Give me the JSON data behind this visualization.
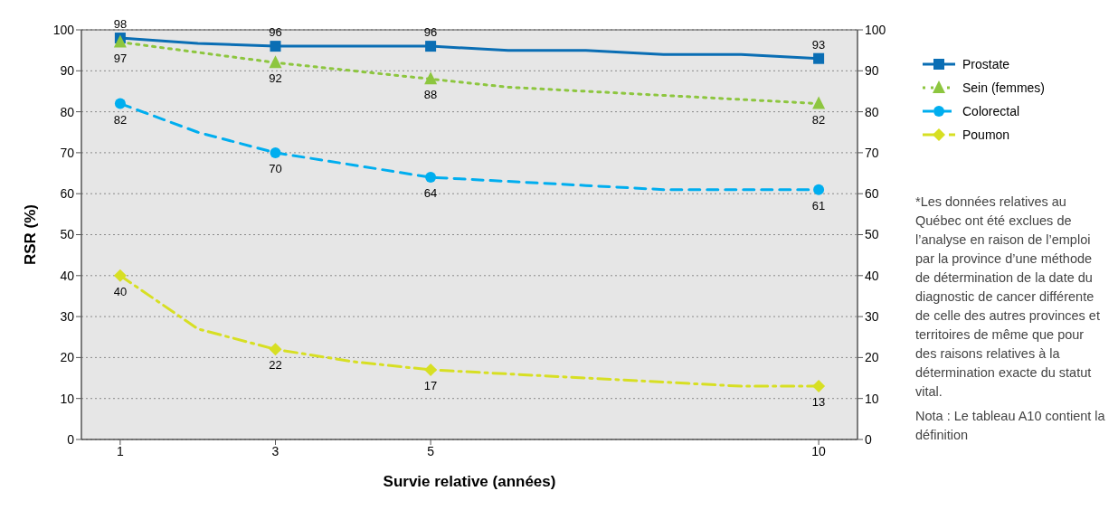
{
  "chart_data": {
    "type": "line",
    "xlabel": "Survie relative (années)",
    "ylabel": "RSR (%)",
    "x": [
      1,
      2,
      3,
      4,
      5,
      6,
      7,
      8,
      9,
      10
    ],
    "xlim": [
      0.5,
      10.5
    ],
    "xticks": [
      1,
      3,
      5,
      10
    ],
    "ylim": [
      0,
      100
    ],
    "yticks": [
      0,
      10,
      20,
      30,
      40,
      50,
      60,
      70,
      80,
      90,
      100
    ],
    "y2lim": [
      0,
      100
    ],
    "y2ticks": [
      0,
      10,
      20,
      30,
      40,
      50,
      60,
      70,
      80,
      90,
      100
    ],
    "grid": "y",
    "legend": "top right",
    "series": [
      {
        "name": "Prostate",
        "color": "#0a6eb4",
        "marker": "none",
        "line_style": "solid",
        "values": [
          98,
          96.7,
          96,
          96,
          96,
          95,
          95,
          94,
          94,
          93
        ]
      },
      {
        "name": "Sein (femmes)",
        "color": "#8dc63f",
        "marker": "none",
        "line_style": "dotted",
        "values": [
          97,
          94.5,
          92,
          90,
          88,
          86,
          85,
          84,
          83,
          82
        ]
      },
      {
        "name": "Colorectal",
        "color": "#00aeef",
        "marker": "none",
        "line_style": "dashed",
        "values": [
          82,
          75,
          70,
          67,
          64,
          63,
          62,
          61,
          61,
          61
        ]
      },
      {
        "name": "Poumon",
        "color": "#d7df23",
        "marker": "none",
        "line_style": "dashdot",
        "values": [
          40,
          27,
          22,
          19,
          17,
          16,
          15,
          14,
          13,
          13
        ]
      },
      {
        "type": "scatter",
        "color": "#0a6eb4",
        "marker": "square",
        "x": [
          1,
          3,
          5,
          10
        ],
        "values": [
          98,
          96,
          96,
          93
        ],
        "value_labels": [
          "98",
          "96",
          "96",
          "93"
        ]
      },
      {
        "type": "scatter",
        "color": "#8dc63f",
        "marker": "triangle",
        "x": [
          1,
          3,
          5,
          10
        ],
        "values": [
          97,
          92,
          88,
          82
        ],
        "value_labels": [
          "97",
          "92",
          "88",
          "82"
        ]
      },
      {
        "type": "scatter",
        "color": "#00aeef",
        "marker": "circle",
        "x": [
          1,
          3,
          5,
          10
        ],
        "values": [
          82,
          70,
          64,
          61
        ],
        "value_labels": [
          "82",
          "70",
          "64",
          "61"
        ]
      },
      {
        "type": "scatter",
        "color": "#d7df23",
        "marker": "diamond",
        "x": [
          1,
          3,
          5,
          10
        ],
        "values": [
          40,
          22,
          17,
          13
        ],
        "value_labels": [
          "40",
          "22",
          "17",
          "13"
        ]
      }
    ],
    "annotations": [
      "*Les données relatives au Québec ont été exclues de l’analyse en raison de l’emploi par la province d’une méthode de détermination de la date du diagnostic de cancer différente de celle des autres provinces et territoires de même que pour des raisons relatives à la détermination exacte du statut vital.",
      "Nota : Le tableau A10 contient la définition"
    ]
  }
}
